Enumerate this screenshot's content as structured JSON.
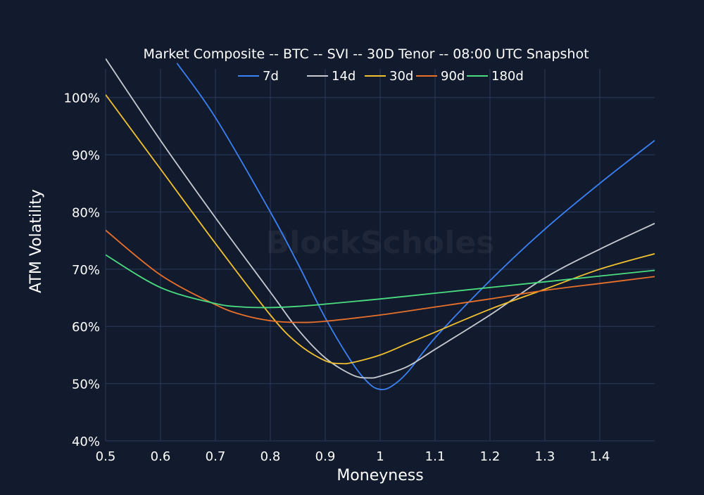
{
  "chart_data": {
    "type": "line",
    "title": "Market Composite -- BTC -- SVI -- 30D Tenor -- 08:00 UTC Snapshot",
    "xlabel": "Moneyness",
    "ylabel": "ATM Volatility",
    "xlim": [
      0.5,
      1.5
    ],
    "ylim": [
      40,
      105
    ],
    "x_ticks": [
      0.5,
      0.6,
      0.7,
      0.8,
      0.9,
      1.0,
      1.1,
      1.2,
      1.3,
      1.4
    ],
    "x_tick_labels": [
      "0.5",
      "0.6",
      "0.7",
      "0.8",
      "0.9",
      "1",
      "1.1",
      "1.2",
      "1.3",
      "1.4"
    ],
    "y_ticks": [
      40,
      50,
      60,
      70,
      80,
      90,
      100
    ],
    "y_tick_labels": [
      "40%",
      "50%",
      "60%",
      "70%",
      "80%",
      "90%",
      "100%"
    ],
    "grid": true,
    "legend_position": "top",
    "watermark": "BlockScholes",
    "series": [
      {
        "name": "7d",
        "color": "#3b82f6",
        "x": [
          0.63,
          0.7,
          0.8,
          0.85,
          0.9,
          0.95,
          0.98,
          1.0,
          1.02,
          1.05,
          1.1,
          1.2,
          1.3,
          1.4,
          1.5
        ],
        "y": [
          106,
          96.5,
          80,
          71,
          61.5,
          53.5,
          50,
          49,
          49.5,
          52,
          58,
          68,
          77,
          85,
          92.5
        ]
      },
      {
        "name": "14d",
        "color": "#c7cbd1",
        "x": [
          0.5,
          0.6,
          0.7,
          0.8,
          0.85,
          0.9,
          0.95,
          0.98,
          1.0,
          1.05,
          1.1,
          1.2,
          1.3,
          1.4,
          1.5
        ],
        "y": [
          106.8,
          92.5,
          79,
          66,
          59.5,
          54.5,
          51.5,
          51,
          51.3,
          53,
          56,
          62,
          68.5,
          73.5,
          78
        ]
      },
      {
        "name": "30d",
        "color": "#f2c12e",
        "x": [
          0.5,
          0.6,
          0.7,
          0.8,
          0.85,
          0.9,
          0.93,
          0.95,
          1.0,
          1.05,
          1.1,
          1.2,
          1.3,
          1.4,
          1.5
        ],
        "y": [
          100.5,
          87.5,
          74.5,
          62,
          57,
          54,
          53.5,
          53.7,
          55,
          57,
          59,
          63,
          66.5,
          70,
          72.7
        ]
      },
      {
        "name": "90d",
        "color": "#e8702a",
        "x": [
          0.5,
          0.6,
          0.7,
          0.75,
          0.8,
          0.85,
          0.9,
          1.0,
          1.1,
          1.2,
          1.3,
          1.4,
          1.5
        ],
        "y": [
          76.8,
          69,
          63.8,
          62,
          61,
          60.7,
          60.9,
          62,
          63.4,
          64.8,
          66.3,
          67.5,
          68.7
        ]
      },
      {
        "name": "180d",
        "color": "#4ade80",
        "x": [
          0.5,
          0.6,
          0.7,
          0.75,
          0.8,
          0.85,
          0.9,
          1.0,
          1.1,
          1.2,
          1.3,
          1.4,
          1.5
        ],
        "y": [
          72.5,
          66.8,
          64,
          63.4,
          63.3,
          63.5,
          63.9,
          64.8,
          65.8,
          66.8,
          67.8,
          68.8,
          69.8
        ]
      }
    ]
  }
}
